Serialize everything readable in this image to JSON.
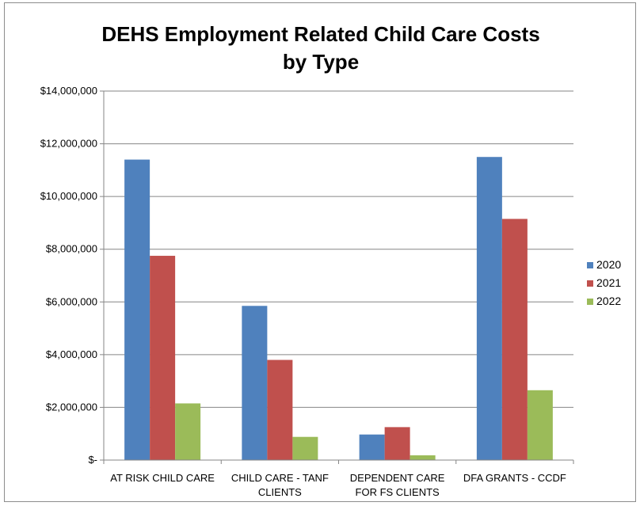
{
  "chart_data": {
    "type": "bar",
    "title": [
      "DEHS Employment Related Child Care Costs",
      "by Type"
    ],
    "categories": [
      [
        "AT RISK CHILD CARE"
      ],
      [
        "CHILD CARE - TANF",
        "CLIENTS"
      ],
      [
        "DEPENDENT CARE",
        "FOR FS CLIENTS"
      ],
      [
        "DFA GRANTS - CCDF"
      ]
    ],
    "series": [
      {
        "name": "2020",
        "color": "#4f81bd",
        "values": [
          11400000,
          5850000,
          970000,
          11500000
        ]
      },
      {
        "name": "2021",
        "color": "#c0504d",
        "values": [
          7750000,
          3800000,
          1250000,
          9150000
        ]
      },
      {
        "name": "2022",
        "color": "#9bbb59",
        "values": [
          2150000,
          880000,
          180000,
          2650000
        ]
      }
    ],
    "ylim": [
      0,
      14000000
    ],
    "yticks": [
      {
        "value": 0,
        "label": "$-"
      },
      {
        "value": 2000000,
        "label": "$2,000,000"
      },
      {
        "value": 4000000,
        "label": "$4,000,000"
      },
      {
        "value": 6000000,
        "label": "$6,000,000"
      },
      {
        "value": 8000000,
        "label": "$8,000,000"
      },
      {
        "value": 10000000,
        "label": "$10,000,000"
      },
      {
        "value": 12000000,
        "label": "$12,000,000"
      },
      {
        "value": 14000000,
        "label": "$14,000,000"
      }
    ],
    "grid": true,
    "legend_position": "right"
  }
}
